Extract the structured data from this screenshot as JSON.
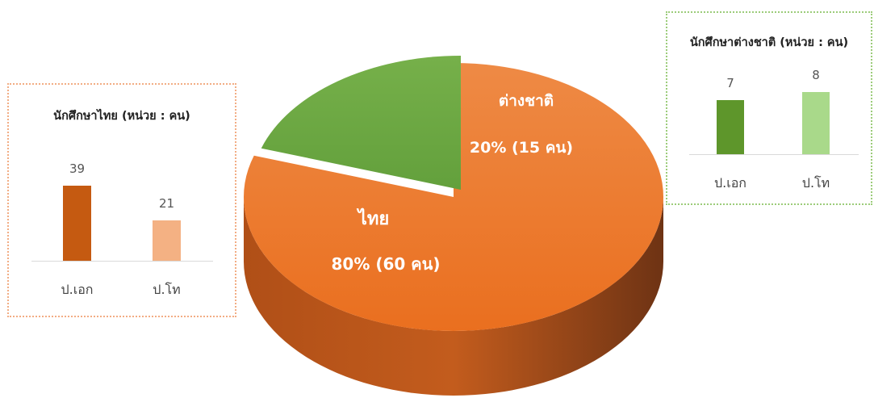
{
  "chart_data": [
    {
      "type": "pie",
      "slices": [
        {
          "label": "ไทย",
          "value": 80,
          "text": "80% (60 คน)",
          "color": "#ed7d31"
        },
        {
          "label": "ต่างชาติ",
          "value": 20,
          "text": "20% (15 คน)",
          "color": "#70ad47"
        }
      ]
    },
    {
      "type": "bar",
      "title": "นักศึกษาไทย (หน่วย : คน)",
      "categories": [
        "ป.เอก",
        "ป.โท"
      ],
      "values": [
        39,
        21
      ],
      "value_labels": [
        "39",
        "21"
      ],
      "colors": [
        "#c55a11",
        "#f4b183"
      ]
    },
    {
      "type": "bar",
      "title": "นักศึกษาต่างชาติ (หน่วย : คน)",
      "categories": [
        "ป.เอก",
        "ป.โท"
      ],
      "values": [
        7,
        8
      ],
      "value_labels": [
        "7",
        "8"
      ],
      "colors": [
        "#5e962b",
        "#a9d98a"
      ]
    }
  ]
}
